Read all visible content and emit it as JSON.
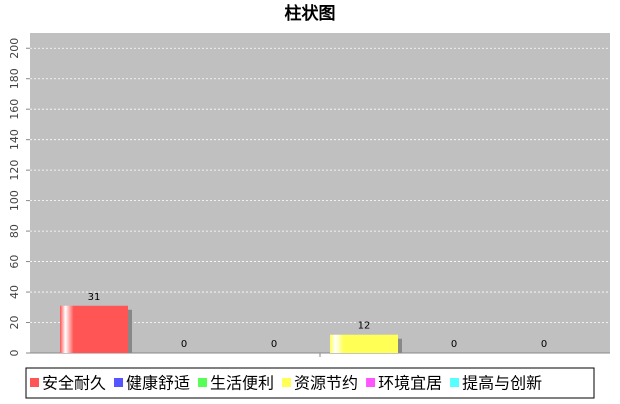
{
  "chart_data": {
    "type": "bar",
    "title": "柱状图",
    "categories": [
      null
    ],
    "series": [
      {
        "name": "安全耐久",
        "color": "#ff5555",
        "values": [
          31
        ]
      },
      {
        "name": "健康舒适",
        "color": "#5555ff",
        "values": [
          0
        ]
      },
      {
        "name": "生活便利",
        "color": "#55ff55",
        "values": [
          0
        ]
      },
      {
        "name": "资源节约",
        "color": "#ffff55",
        "values": [
          12
        ]
      },
      {
        "name": "环境宜居",
        "color": "#ff55ff",
        "values": [
          0
        ]
      },
      {
        "name": "提高与创新",
        "color": "#55ffff",
        "values": [
          0
        ]
      }
    ],
    "ylim": [
      0,
      210
    ],
    "yticks": [
      0,
      20,
      40,
      60,
      80,
      100,
      120,
      140,
      160,
      180,
      200
    ],
    "grid": true,
    "legend": "bottom"
  }
}
